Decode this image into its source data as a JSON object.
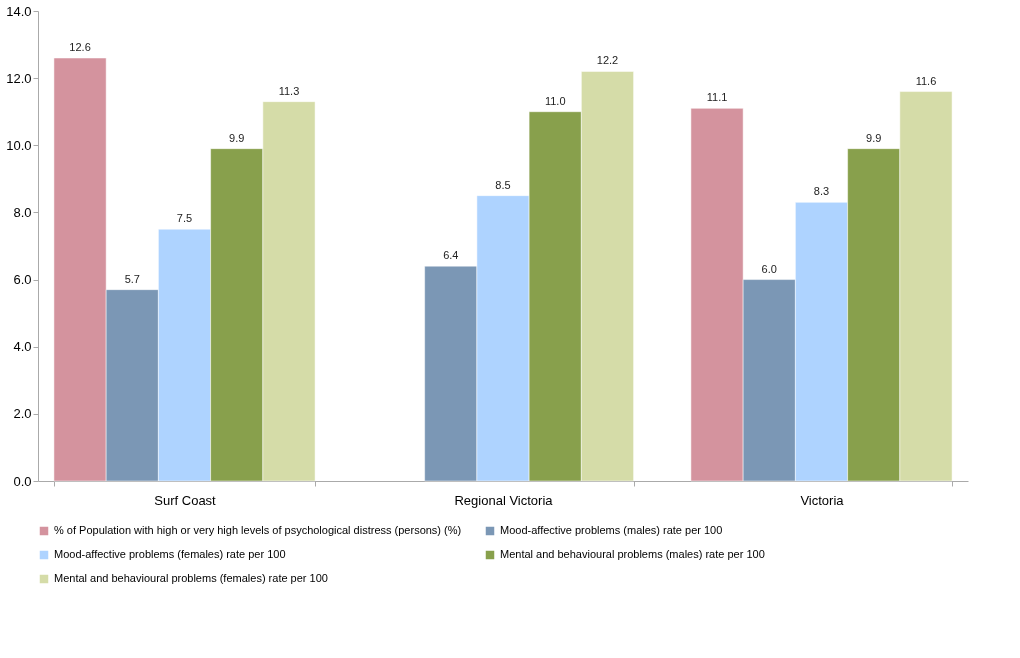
{
  "chart_data": {
    "type": "bar",
    "categories": [
      "Surf Coast",
      "Regional Victoria",
      "Victoria"
    ],
    "series": [
      {
        "name": "% of Population with high or very high levels of psychological distress (persons) (%)",
        "color": "#d4939e",
        "values": [
          12.6,
          null,
          11.1
        ],
        "value_labels": [
          "12.6",
          null,
          "11.1"
        ]
      },
      {
        "name": "Mood-affective problems (males)  rate per 100",
        "color": "#7b97b5",
        "values": [
          5.7,
          6.4,
          6.0
        ],
        "value_labels": [
          "5.7",
          "6.4",
          "6.0"
        ]
      },
      {
        "name": "Mood-affective problems (females) rate per 100",
        "color": "#aed3ff",
        "values": [
          7.5,
          8.5,
          8.3
        ],
        "value_labels": [
          "7.5",
          "8.5",
          "8.3"
        ]
      },
      {
        "name": "Mental and behavioural problems (males) rate per 100",
        "color": "#88a04c",
        "values": [
          9.9,
          11.0,
          9.9
        ],
        "value_labels": [
          "9.9",
          "11.0",
          "9.9"
        ]
      },
      {
        "name": "Mental and behavioural problems (females) rate per 100",
        "color": "#d5dca8",
        "values": [
          11.3,
          12.2,
          11.6
        ],
        "value_labels": [
          "11.3",
          "12.2",
          "11.6"
        ]
      }
    ],
    "ylim": [
      0,
      14
    ],
    "yticks": [
      {
        "value": 0,
        "label": "0.0"
      },
      {
        "value": 2,
        "label": "2.0"
      },
      {
        "value": 4,
        "label": "4.0"
      },
      {
        "value": 6,
        "label": "6.0"
      },
      {
        "value": 8,
        "label": "8.0"
      },
      {
        "value": 10,
        "label": "10.0"
      },
      {
        "value": 12,
        "label": "12.0"
      },
      {
        "value": 14,
        "label": "14.0"
      }
    ],
    "legend": "bottom",
    "grid": false
  }
}
